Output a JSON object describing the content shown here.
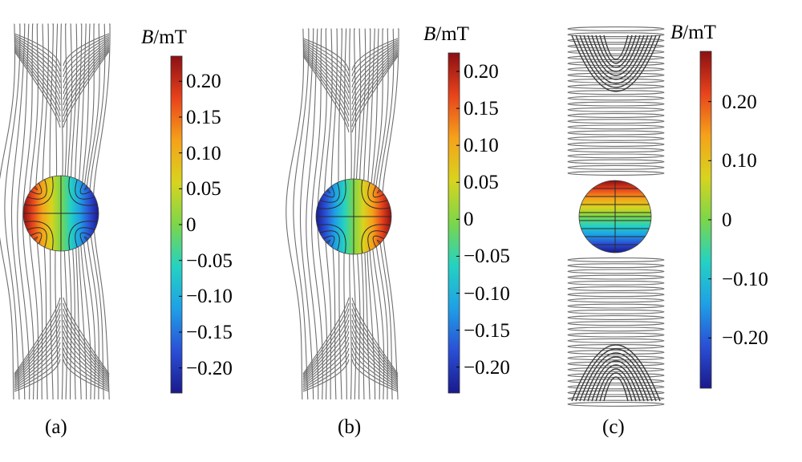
{
  "panels": [
    {
      "id": "a",
      "caption": "(a)",
      "unit_symbol": "B",
      "unit_rest": "/mT",
      "field": "horizontal",
      "ticks": [
        "0.20",
        "0.15",
        "0.10",
        "0.05",
        "0",
        "−0.05",
        "−0.10",
        "−0.15",
        "−0.20"
      ],
      "tick_values": [
        0.2,
        0.15,
        0.1,
        0.05,
        0,
        -0.05,
        -0.1,
        -0.15,
        -0.2
      ],
      "range": [
        -0.235,
        0.235
      ]
    },
    {
      "id": "b",
      "caption": "(b)",
      "unit_symbol": "B",
      "unit_rest": "/mT",
      "field": "horizontal-reversed",
      "ticks": [
        "0.20",
        "0.15",
        "0.10",
        "0.05",
        "0",
        "−0.05",
        "−0.10",
        "−0.15",
        "−0.20"
      ],
      "tick_values": [
        0.2,
        0.15,
        0.1,
        0.05,
        0,
        -0.05,
        -0.1,
        -0.15,
        -0.2
      ],
      "range": [
        -0.235,
        0.225
      ]
    },
    {
      "id": "c",
      "caption": "(c)",
      "unit_symbol": "B",
      "unit_rest": "/mT",
      "field": "vertical",
      "ticks": [
        "0.20",
        "0.10",
        "0",
        "−0.10",
        "−0.20"
      ],
      "tick_values": [
        0.2,
        0.1,
        0,
        -0.1,
        -0.2
      ],
      "range": [
        -0.285,
        0.285
      ]
    }
  ],
  "colormap": [
    "#1a1a8c",
    "#2a4fd6",
    "#1ea0e6",
    "#24d2c2",
    "#7bd64a",
    "#d8d41e",
    "#f5a21a",
    "#e8431b",
    "#8c0f14"
  ]
}
